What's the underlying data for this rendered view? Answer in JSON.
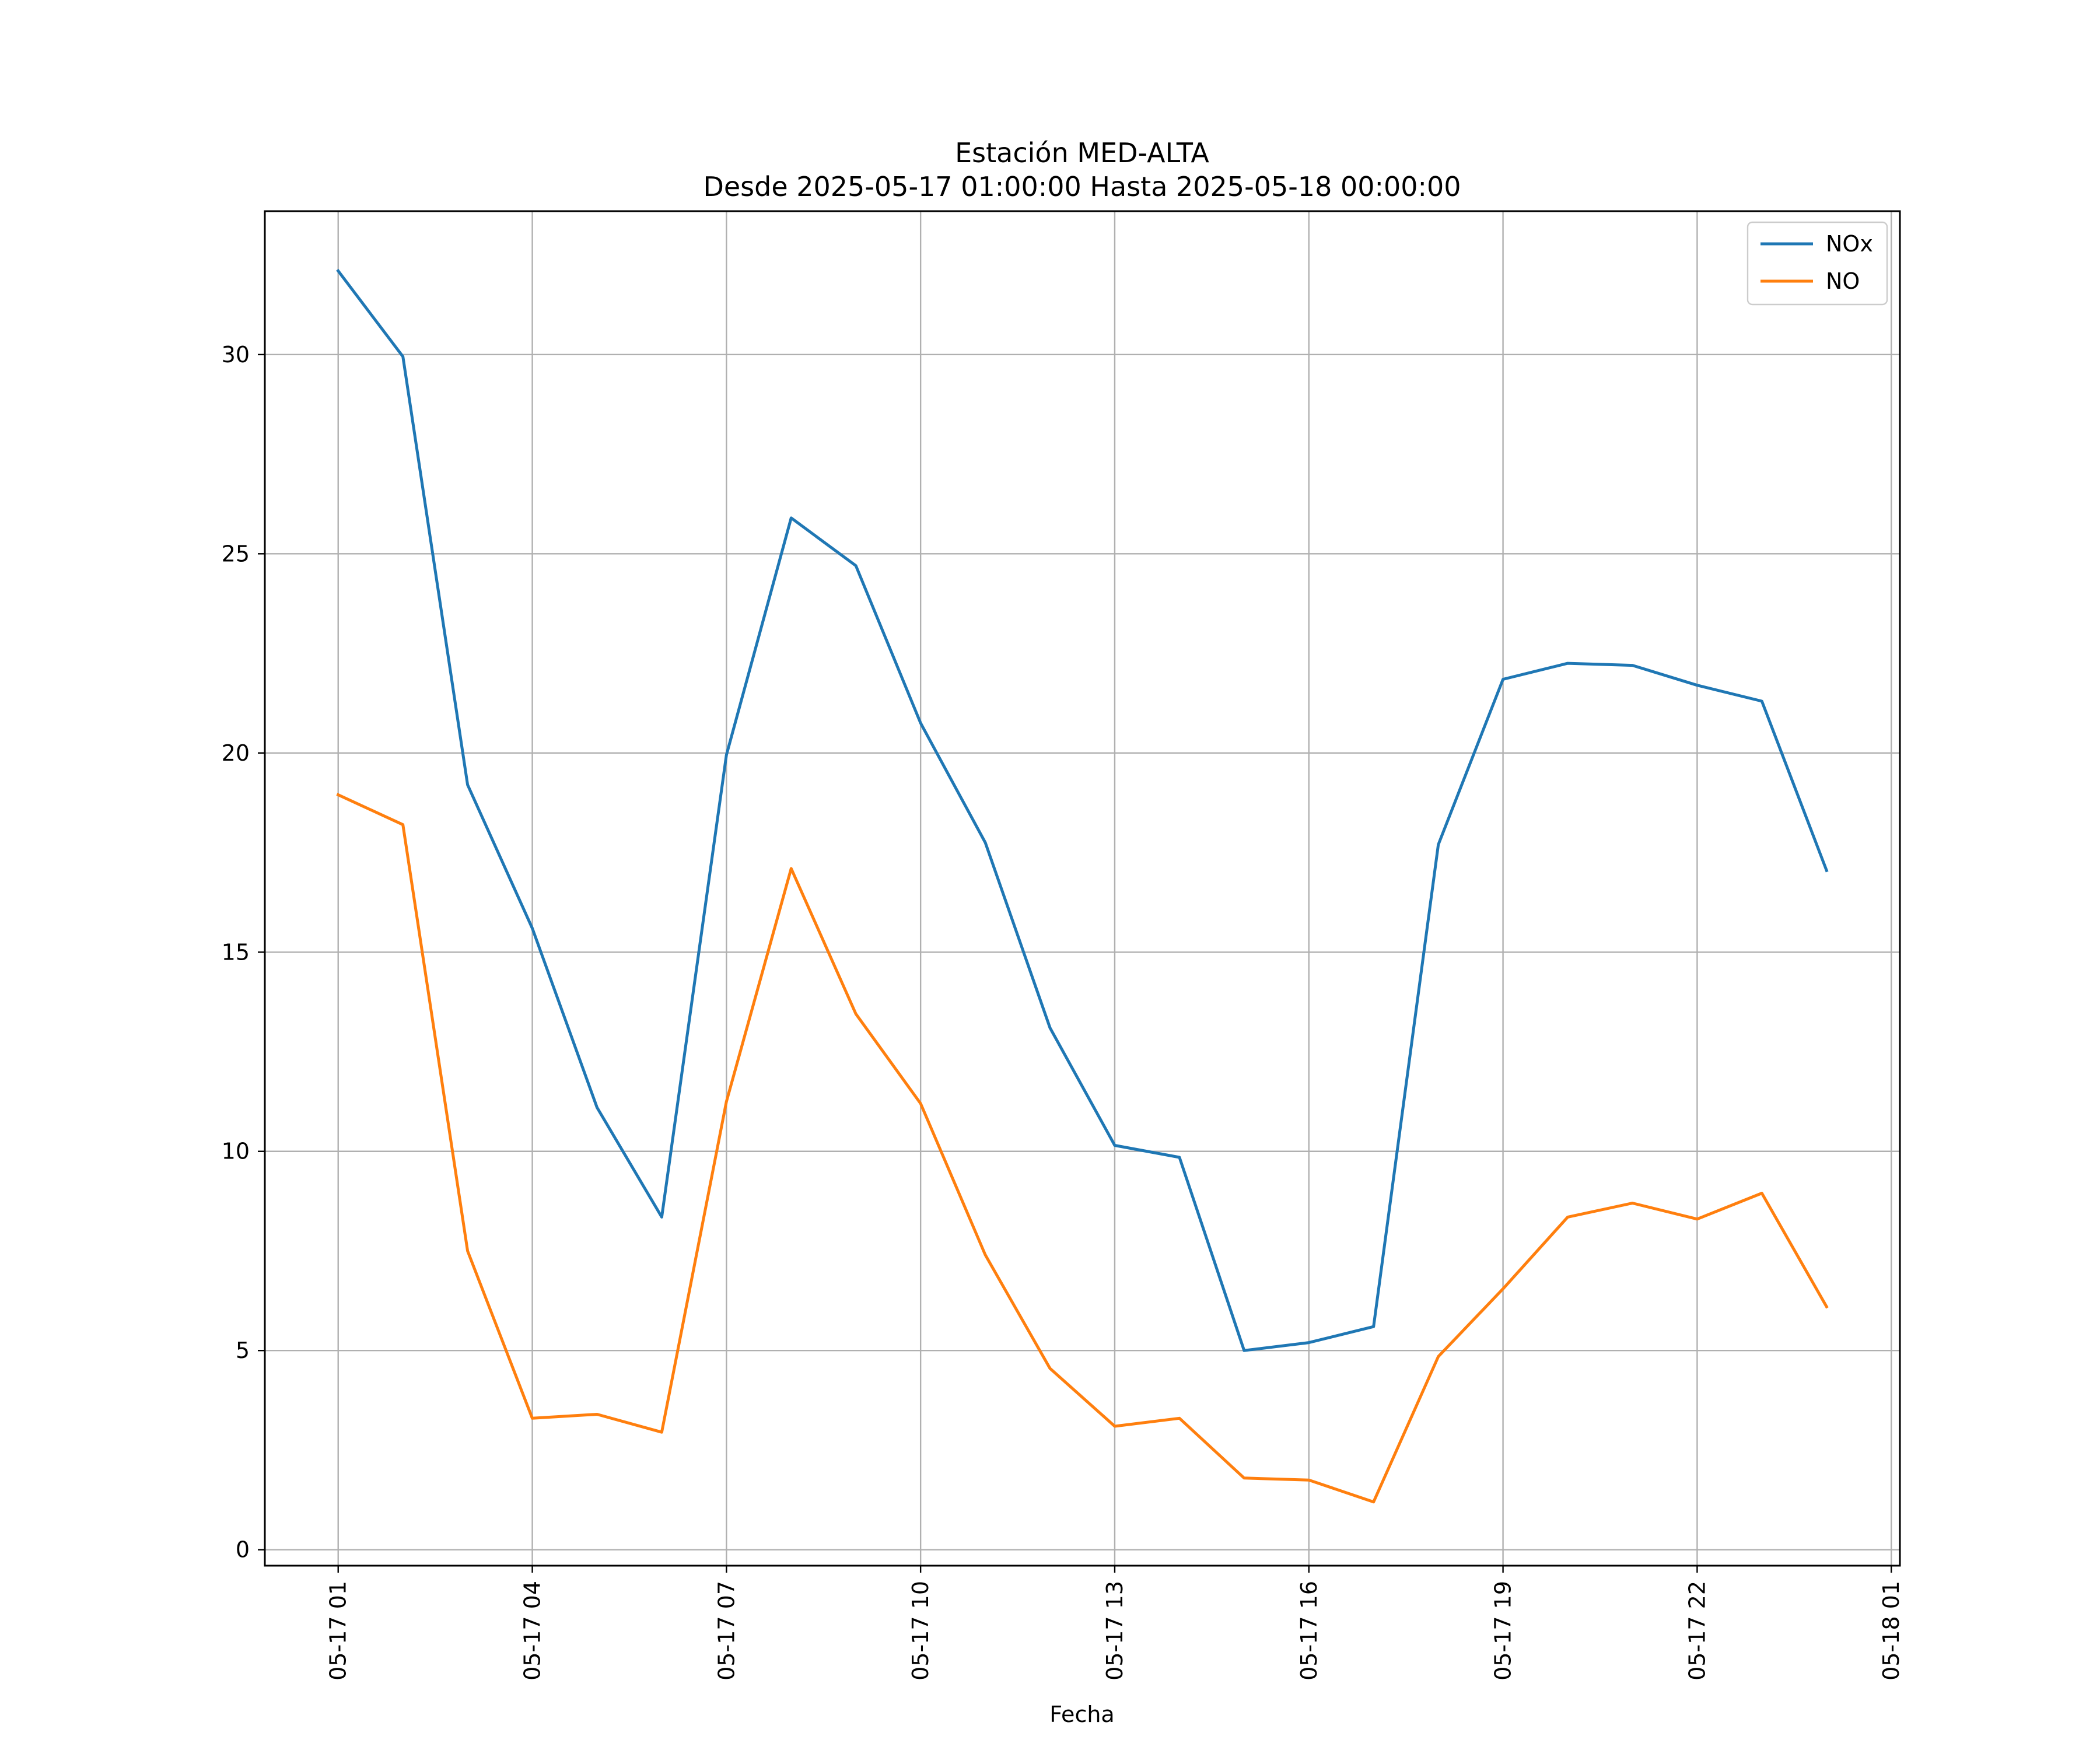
{
  "chart_data": {
    "type": "line",
    "title": "Estación MED-ALTA",
    "subtitle": "Desde 2025-05-17 01:00:00 Hasta 2025-05-18 00:00:00",
    "xlabel": "Fecha",
    "ylabel": "",
    "x": [
      "2025-05-17 01:00",
      "2025-05-17 02:00",
      "2025-05-17 03:00",
      "2025-05-17 04:00",
      "2025-05-17 05:00",
      "2025-05-17 06:00",
      "2025-05-17 07:00",
      "2025-05-17 08:00",
      "2025-05-17 09:00",
      "2025-05-17 10:00",
      "2025-05-17 11:00",
      "2025-05-17 12:00",
      "2025-05-17 13:00",
      "2025-05-17 14:00",
      "2025-05-17 15:00",
      "2025-05-17 16:00",
      "2025-05-17 17:00",
      "2025-05-17 18:00",
      "2025-05-17 19:00",
      "2025-05-17 20:00",
      "2025-05-17 21:00",
      "2025-05-17 22:00",
      "2025-05-17 23:00",
      "2025-05-18 00:00"
    ],
    "xlim": [
      "2025-05-16 23:52",
      "2025-05-18 01:08"
    ],
    "x_ticks": [
      {
        "value": "2025-05-17 01:00",
        "label": "05-17 01"
      },
      {
        "value": "2025-05-17 04:00",
        "label": "05-17 04"
      },
      {
        "value": "2025-05-17 07:00",
        "label": "05-17 07"
      },
      {
        "value": "2025-05-17 10:00",
        "label": "05-17 10"
      },
      {
        "value": "2025-05-17 13:00",
        "label": "05-17 13"
      },
      {
        "value": "2025-05-17 16:00",
        "label": "05-17 16"
      },
      {
        "value": "2025-05-17 19:00",
        "label": "05-17 19"
      },
      {
        "value": "2025-05-17 22:00",
        "label": "05-17 22"
      },
      {
        "value": "2025-05-18 01:00",
        "label": "05-18 01"
      }
    ],
    "ylim": [
      -0.4,
      33.6
    ],
    "y_ticks": [
      0,
      5,
      10,
      15,
      20,
      25,
      30
    ],
    "grid": true,
    "legend_position": "top-right",
    "series": [
      {
        "name": "NOx",
        "color": "#1f77b4",
        "values": [
          32.1,
          29.95,
          19.2,
          15.6,
          11.1,
          8.35,
          19.95,
          25.9,
          24.7,
          20.75,
          17.75,
          13.1,
          10.15,
          9.85,
          5.0,
          5.2,
          5.6,
          17.7,
          21.85,
          22.25,
          22.2,
          21.7,
          21.3,
          17.05
        ]
      },
      {
        "name": "NO",
        "color": "#ff7f0e",
        "values": [
          18.95,
          18.2,
          7.5,
          3.3,
          3.4,
          2.95,
          11.25,
          17.1,
          13.45,
          11.2,
          7.4,
          4.55,
          3.1,
          3.3,
          1.8,
          1.75,
          1.2,
          4.85,
          6.55,
          8.35,
          8.7,
          8.3,
          8.95,
          6.1
        ]
      }
    ]
  }
}
